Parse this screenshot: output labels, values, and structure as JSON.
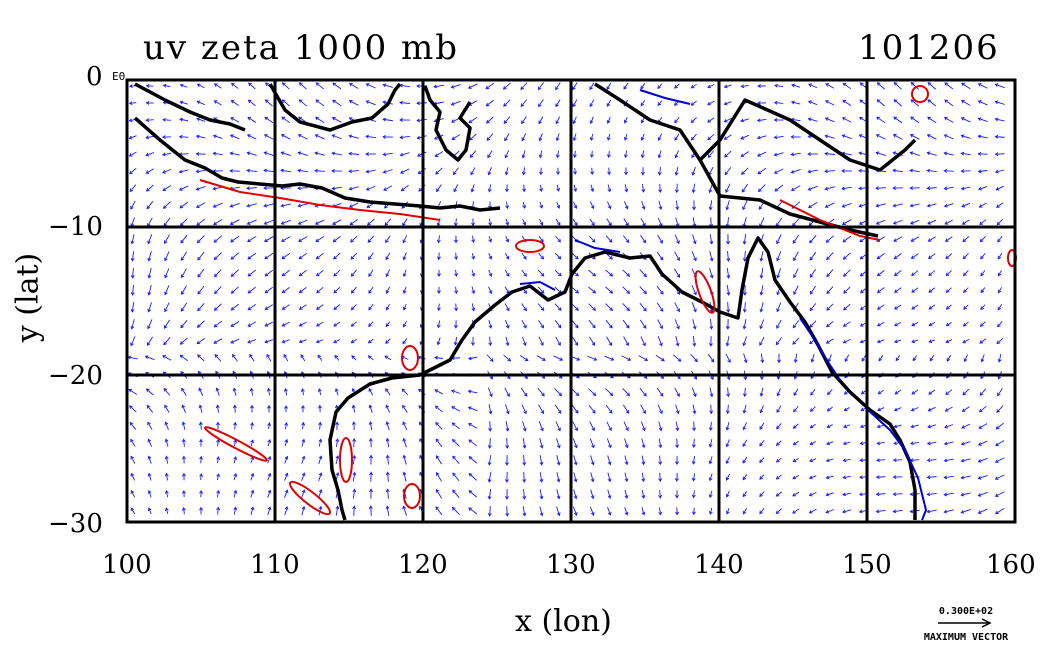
{
  "title_left": "uv zeta 1000 mb",
  "title_right": "101206",
  "axis_x_label": "x (lon)",
  "axis_y_label": "y (lat)",
  "y_corner_label": "E0",
  "x_ticks": [
    "100",
    "110",
    "120",
    "130",
    "140",
    "150",
    "160"
  ],
  "y_ticks": [
    "0",
    "−10",
    "−20",
    "−30"
  ],
  "scale_vector_value": "0.300E+02",
  "scale_vector_label": "MAXIMUM VECTOR",
  "colors": {
    "vector": "#1a1aff",
    "positive_contour": "#e00000",
    "negative_contour": "#0000d0",
    "coastline": "#000000",
    "grid": "#000000"
  },
  "chart_data": {
    "type": "vector_field_map",
    "lon_range": [
      100,
      160
    ],
    "lat_range": [
      -30,
      0
    ],
    "grid_lines_lon": [
      110,
      120,
      130,
      140,
      150
    ],
    "grid_lines_lat": [
      -10,
      -20
    ],
    "features": [
      "wind vectors",
      "vorticity contours",
      "coastlines"
    ]
  }
}
